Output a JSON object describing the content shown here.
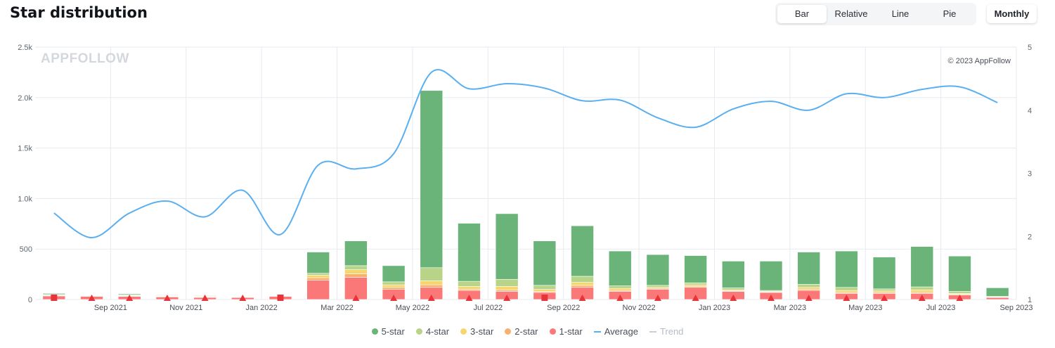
{
  "header": {
    "title": "Star distribution"
  },
  "view_switch": {
    "options": [
      "Bar",
      "Relative",
      "Line",
      "Pie"
    ],
    "selected": "Bar"
  },
  "period": {
    "label": "Monthly"
  },
  "watermark": "APPFOLLOW",
  "copyright": "© 2023 AppFollow",
  "colors": {
    "five_star": "#6ab47a",
    "four_star": "#b8d486",
    "three_star": "#f6d66f",
    "two_star": "#f7b06e",
    "one_star": "#fb7878",
    "average": "#5aaff0",
    "trend": "#c9ced6",
    "marker": "#e8333a"
  },
  "legend": [
    {
      "label": "5-star",
      "kind": "dot",
      "color": "#6ab47a",
      "muted": false
    },
    {
      "label": "4-star",
      "kind": "dot",
      "color": "#b8d486",
      "muted": false
    },
    {
      "label": "3-star",
      "kind": "dot",
      "color": "#f6d66f",
      "muted": false
    },
    {
      "label": "2-star",
      "kind": "dot",
      "color": "#f7b06e",
      "muted": false
    },
    {
      "label": "1-star",
      "kind": "dot",
      "color": "#fb7878",
      "muted": false
    },
    {
      "label": "Average",
      "kind": "line",
      "color": "#5aaff0",
      "muted": false
    },
    {
      "label": "Trend",
      "kind": "line",
      "color": "#c9ced6",
      "muted": true
    }
  ],
  "chart_data": {
    "type": "bar",
    "stacked": true,
    "x_tick_labels": [
      "Sep 2021",
      "Nov 2021",
      "Jan 2022",
      "Mar 2022",
      "May 2022",
      "Jul 2022",
      "Sep 2022",
      "Nov 2022",
      "Jan 2023",
      "Mar 2023",
      "May 2023",
      "Jul 2023",
      "Sep 2023"
    ],
    "categories": [
      "Aug 2021",
      "Sep 2021",
      "Oct 2021",
      "Nov 2021",
      "Dec 2021",
      "Jan 2022",
      "Feb 2022",
      "Mar 2022",
      "Apr 2022",
      "May 2022",
      "Jun 2022",
      "Jul 2022",
      "Aug 2022",
      "Sep 2022",
      "Oct 2022",
      "Nov 2022",
      "Dec 2022",
      "Jan 2023",
      "Feb 2023",
      "Mar 2023",
      "Apr 2023",
      "May 2023",
      "Jun 2023",
      "Jul 2023",
      "Aug 2023",
      "Sep 2023"
    ],
    "y_left": {
      "ticks": [
        "0",
        "500",
        "1.0k",
        "1.5k",
        "2.0k",
        "2.5k"
      ],
      "lim": [
        0,
        2500
      ]
    },
    "y_right": {
      "ticks": [
        "1",
        "2",
        "3",
        "4",
        "5"
      ],
      "lim": [
        1,
        5
      ]
    },
    "grid": true,
    "legend_position": "bottom",
    "series": [
      {
        "name": "1-star",
        "values": [
          35,
          30,
          30,
          25,
          20,
          20,
          30,
          190,
          220,
          100,
          120,
          90,
          80,
          70,
          120,
          80,
          100,
          120,
          80,
          70,
          90,
          60,
          60,
          60,
          45,
          20
        ]
      },
      {
        "name": "2-star",
        "values": [
          5,
          5,
          5,
          5,
          5,
          3,
          0,
          25,
          35,
          20,
          25,
          10,
          15,
          10,
          20,
          10,
          10,
          10,
          5,
          5,
          10,
          10,
          10,
          10,
          5,
          3
        ]
      },
      {
        "name": "3-star",
        "values": [
          5,
          5,
          5,
          5,
          5,
          3,
          0,
          25,
          40,
          25,
          40,
          30,
          35,
          20,
          30,
          20,
          10,
          15,
          10,
          5,
          20,
          20,
          15,
          25,
          10,
          3
        ]
      },
      {
        "name": "4-star",
        "values": [
          5,
          0,
          5,
          5,
          5,
          2,
          0,
          20,
          40,
          30,
          130,
          50,
          70,
          40,
          60,
          25,
          20,
          20,
          20,
          10,
          30,
          30,
          20,
          30,
          20,
          5
        ]
      },
      {
        "name": "5-star",
        "values": [
          10,
          0,
          10,
          5,
          5,
          2,
          0,
          210,
          245,
          160,
          1755,
          575,
          650,
          440,
          500,
          345,
          305,
          270,
          265,
          290,
          320,
          360,
          315,
          400,
          350,
          85
        ]
      },
      {
        "name": "Average",
        "axis": "right",
        "values": [
          2.37,
          1.98,
          2.37,
          2.56,
          2.31,
          2.73,
          2.03,
          3.13,
          3.07,
          3.31,
          4.6,
          4.34,
          4.42,
          4.35,
          4.15,
          4.16,
          3.88,
          3.73,
          4.02,
          4.14,
          4.0,
          4.26,
          4.2,
          4.33,
          4.37,
          4.12
        ]
      }
    ],
    "markers": {
      "months": [
        "Aug 2021",
        "Sep 2021",
        "Oct 2021",
        "Nov 2021",
        "Dec 2021",
        "Jan 2022",
        "Feb 2022",
        "Apr 2022",
        "May 2022",
        "Jun 2022",
        "Jul 2022",
        "Aug 2022",
        "Sep 2022",
        "Oct 2022",
        "Nov 2022",
        "Dec 2022",
        "Jan 2023",
        "Feb 2023",
        "Mar 2023",
        "Apr 2023",
        "May 2023",
        "Jun 2023",
        "Jul 2023",
        "Aug 2023"
      ],
      "shapes": [
        "square",
        "triangle",
        "triangle",
        "triangle",
        "triangle",
        "triangle",
        "square",
        "triangle",
        "triangle",
        "triangle",
        "triangle",
        "triangle",
        "square",
        "triangle",
        "triangle",
        "triangle",
        "triangle",
        "triangle",
        "triangle",
        "triangle",
        "triangle",
        "triangle",
        "triangle",
        "triangle"
      ]
    }
  }
}
